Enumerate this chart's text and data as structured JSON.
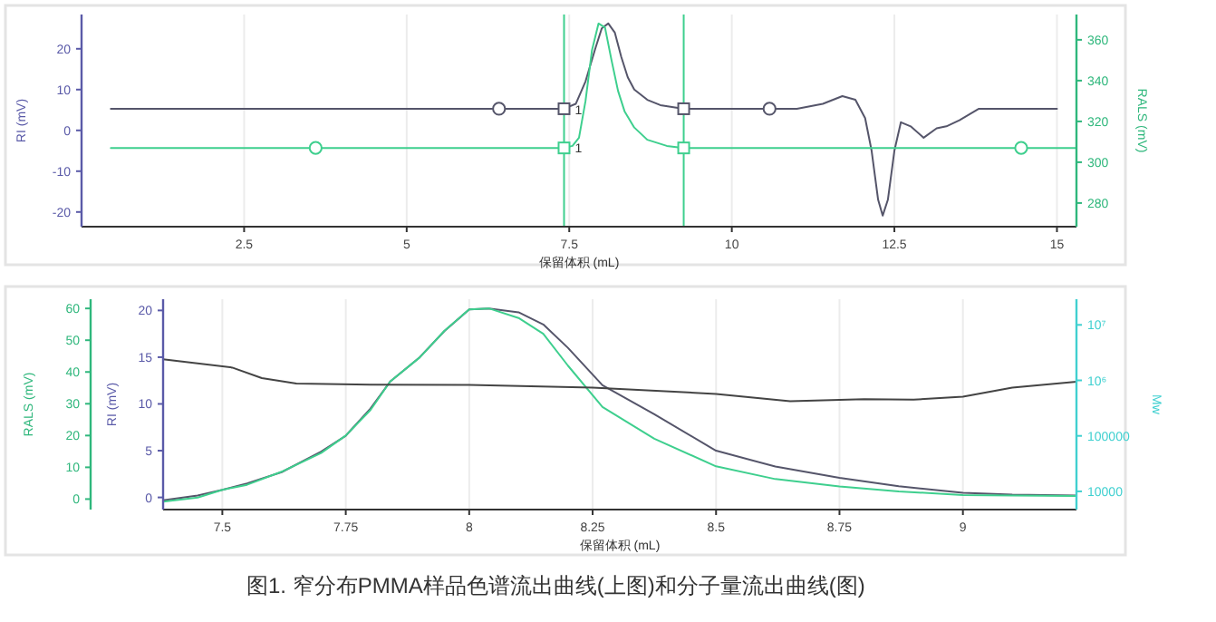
{
  "chart_data": [
    {
      "type": "line",
      "xlabel": "保留体积 (mL)",
      "ylabel": "RI (mV)",
      "y2label": "RALS (mV)",
      "xlim": [
        0,
        15.3
      ],
      "xticks": [
        2.5,
        5,
        7.5,
        10,
        12.5,
        15
      ],
      "ylim": [
        -23.6,
        28.4
      ],
      "yticks": [
        -20,
        -10,
        0,
        10,
        20
      ],
      "y2lim": [
        268.4,
        372.4
      ],
      "y2ticks": [
        280,
        300,
        320,
        340,
        360
      ],
      "grid": "x",
      "ref_lines": [
        {
          "axis": "x",
          "value": 7.42,
          "color": "#3ecf8e",
          "line_style": "solid"
        },
        {
          "axis": "x",
          "value": 9.26,
          "color": "#3ecf8e",
          "line_style": "solid"
        }
      ],
      "annotations": [
        {
          "text": "1",
          "x": 7.42,
          "y": 5.3
        },
        {
          "text": "1",
          "x": 7.42,
          "y": -4
        }
      ],
      "series": [
        {
          "type": "line",
          "color": "#55556a",
          "axis": "y",
          "x": [
            0.45,
            3,
            6.42,
            7.42,
            7.6,
            7.75,
            7.9,
            8.0,
            8.1,
            8.2,
            8.3,
            8.4,
            8.5,
            8.7,
            8.9,
            9.26,
            10.58,
            11.0,
            11.4,
            11.7,
            11.9,
            12.05,
            12.15,
            12.25,
            12.32,
            12.4,
            12.5,
            12.6,
            12.75,
            12.95,
            13.15,
            13.3,
            13.5,
            13.8,
            15.0
          ],
          "values": [
            5.3,
            5.3,
            5.3,
            5.3,
            6.5,
            12,
            20,
            25,
            26.2,
            24,
            18,
            13,
            10,
            7.5,
            6.2,
            5.3,
            5.3,
            5.3,
            6.5,
            8.4,
            7.5,
            3,
            -5,
            -17,
            -20.9,
            -17,
            -5,
            2.0,
            1.0,
            -1.8,
            0.5,
            1.0,
            2.5,
            5.3,
            5.3
          ]
        },
        {
          "type": "line",
          "color": "#3ecf8e",
          "axis": "y2",
          "x": [
            0.45,
            3.6,
            7.42,
            7.55,
            7.65,
            7.75,
            7.85,
            7.95,
            8.05,
            8.15,
            8.25,
            8.35,
            8.5,
            8.7,
            9.0,
            9.26,
            11,
            12.5,
            14.45,
            15.3
          ],
          "values": [
            307,
            307,
            307,
            308,
            312,
            330,
            355,
            368,
            366,
            350,
            335,
            325,
            317,
            311,
            308,
            307,
            307,
            307,
            307,
            307
          ]
        },
        {
          "type": "scatter",
          "marker": "circle",
          "color": "#55556a",
          "axis": "y",
          "x": [
            6.42,
            10.58
          ],
          "values": [
            5.3,
            5.3
          ]
        },
        {
          "type": "scatter",
          "marker": "square",
          "color": "#55556a",
          "axis": "y",
          "x": [
            7.42,
            9.26
          ],
          "values": [
            5.3,
            5.3
          ]
        },
        {
          "type": "scatter",
          "marker": "circle",
          "color": "#3ecf8e",
          "axis": "y2",
          "x": [
            3.6,
            14.45
          ],
          "values": [
            307,
            307
          ]
        },
        {
          "type": "scatter",
          "marker": "square",
          "color": "#3ecf8e",
          "axis": "y2",
          "x": [
            7.42,
            9.26
          ],
          "values": [
            307,
            307
          ]
        }
      ]
    },
    {
      "type": "line",
      "xlabel": "保留体积 (mL)",
      "ylabel": "RI (mV)",
      "y2label": "Mw",
      "y3label": "RALS (mV)",
      "xlim": [
        7.38,
        9.23
      ],
      "xticks": [
        7.5,
        7.75,
        8,
        8.25,
        8.5,
        8.75,
        9
      ],
      "ylim": [
        -1.3,
        21.2
      ],
      "yticks": [
        0,
        5,
        10,
        15,
        20
      ],
      "y3lim": [
        -3.3,
        62.9
      ],
      "y3ticks": [
        0,
        10,
        20,
        30,
        40,
        50,
        60
      ],
      "y2lim": [
        4700,
        29000000
      ],
      "y2ticks": [
        {
          "value": 10000000,
          "label": "10⁷"
        },
        {
          "value": 1000000,
          "label": "10⁶"
        },
        100000,
        10000
      ],
      "log": "y2",
      "grid": "x",
      "annotations": [
        "图1. 窄分布PMMA样品色谱流出曲线(上图)和分子量流出曲线(图)"
      ],
      "series": [
        {
          "type": "line",
          "color": "#55556a",
          "axis": "y",
          "x": [
            7.38,
            7.45,
            7.5,
            7.55,
            7.62,
            7.7,
            7.75,
            7.8,
            7.84,
            7.9,
            7.95,
            8.0,
            8.04,
            8.1,
            8.15,
            8.2,
            8.27,
            8.375,
            8.5,
            8.62,
            8.75,
            8.87,
            9.0,
            9.1,
            9.23
          ],
          "values": [
            -0.3,
            0.2,
            0.8,
            1.5,
            2.7,
            4.9,
            6.6,
            9.5,
            12.4,
            15,
            17.8,
            20.1,
            20.2,
            19.8,
            18.5,
            16,
            12,
            8.9,
            5.0,
            3.3,
            2.1,
            1.2,
            0.5,
            0.3,
            0.2
          ]
        },
        {
          "type": "line",
          "color": "#3ecf8e",
          "axis": "y3",
          "x": [
            7.38,
            7.45,
            7.5,
            7.55,
            7.62,
            7.7,
            7.75,
            7.8,
            7.84,
            7.9,
            7.95,
            8.0,
            8.04,
            8.1,
            8.15,
            8.2,
            8.27,
            8.375,
            8.5,
            8.62,
            8.75,
            8.87,
            9.0,
            9.1,
            9.23
          ],
          "values": [
            -0.8,
            0.5,
            2.9,
            4.5,
            8.6,
            14.5,
            20,
            28,
            37,
            44.6,
            53,
            59.7,
            60,
            57,
            52,
            42,
            29,
            19,
            10.3,
            6.3,
            4,
            2.4,
            1.3,
            1.1,
            1.0
          ]
        },
        {
          "type": "line",
          "color": "#444444",
          "axis": "y2",
          "x": [
            7.38,
            7.52,
            7.58,
            7.65,
            7.8,
            8.0,
            8.25,
            8.5,
            8.65,
            8.8,
            8.9,
            9.0,
            9.1,
            9.23
          ],
          "values": [
            2400000,
            1700000,
            1100000,
            880000,
            840000,
            830000,
            740000,
            570000,
            420000,
            460000,
            450000,
            510000,
            740000,
            950000
          ]
        }
      ]
    }
  ]
}
